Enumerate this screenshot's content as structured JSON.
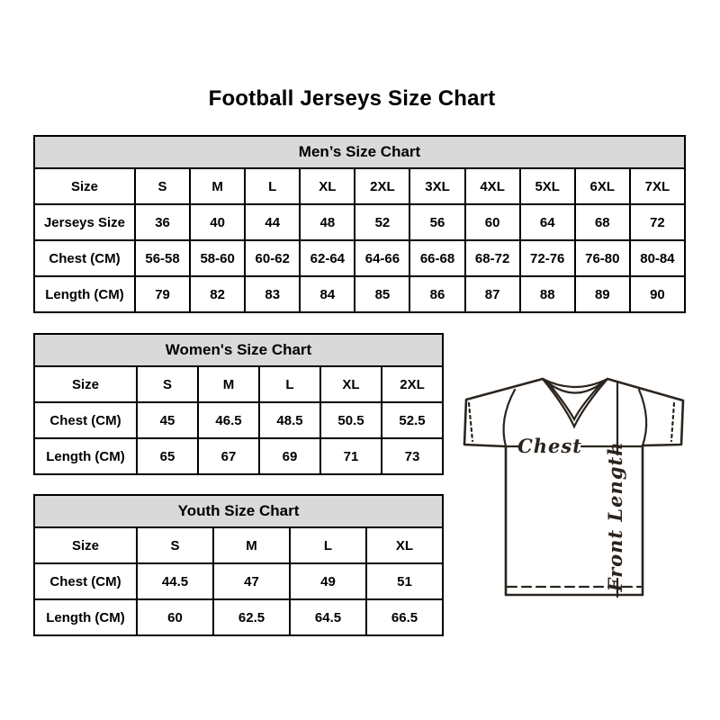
{
  "title": "Football Jerseys Size Chart",
  "tables": {
    "men": {
      "header": "Men’s Size Chart",
      "rows": [
        [
          "Size",
          "S",
          "M",
          "L",
          "XL",
          "2XL",
          "3XL",
          "4XL",
          "5XL",
          "6XL",
          "7XL"
        ],
        [
          "Jerseys Size",
          "36",
          "40",
          "44",
          "48",
          "52",
          "56",
          "60",
          "64",
          "68",
          "72"
        ],
        [
          "Chest (CM)",
          "56-58",
          "58-60",
          "60-62",
          "62-64",
          "64-66",
          "66-68",
          "68-72",
          "72-76",
          "76-80",
          "80-84"
        ],
        [
          "Length (CM)",
          "79",
          "82",
          "83",
          "84",
          "85",
          "86",
          "87",
          "88",
          "89",
          "90"
        ]
      ]
    },
    "women": {
      "header": "Women's Size Chart",
      "rows": [
        [
          "Size",
          "S",
          "M",
          "L",
          "XL",
          "2XL"
        ],
        [
          "Chest (CM)",
          "45",
          "46.5",
          "48.5",
          "50.5",
          "52.5"
        ],
        [
          "Length (CM)",
          "65",
          "67",
          "69",
          "71",
          "73"
        ]
      ]
    },
    "youth": {
      "header": "Youth Size Chart",
      "rows": [
        [
          "Size",
          "S",
          "M",
          "L",
          "XL"
        ],
        [
          "Chest (CM)",
          "44.5",
          "47",
          "49",
          "51"
        ],
        [
          "Length (CM)",
          "60",
          "62.5",
          "64.5",
          "66.5"
        ]
      ]
    }
  },
  "jersey": {
    "chest_label": "Chest",
    "front_length_label": "Front Length"
  },
  "colors": {
    "background": "#ffffff",
    "header_bg": "#d9d9d9",
    "table_border": "#000000",
    "text": "#000000",
    "jersey_line": "#2b241e"
  }
}
